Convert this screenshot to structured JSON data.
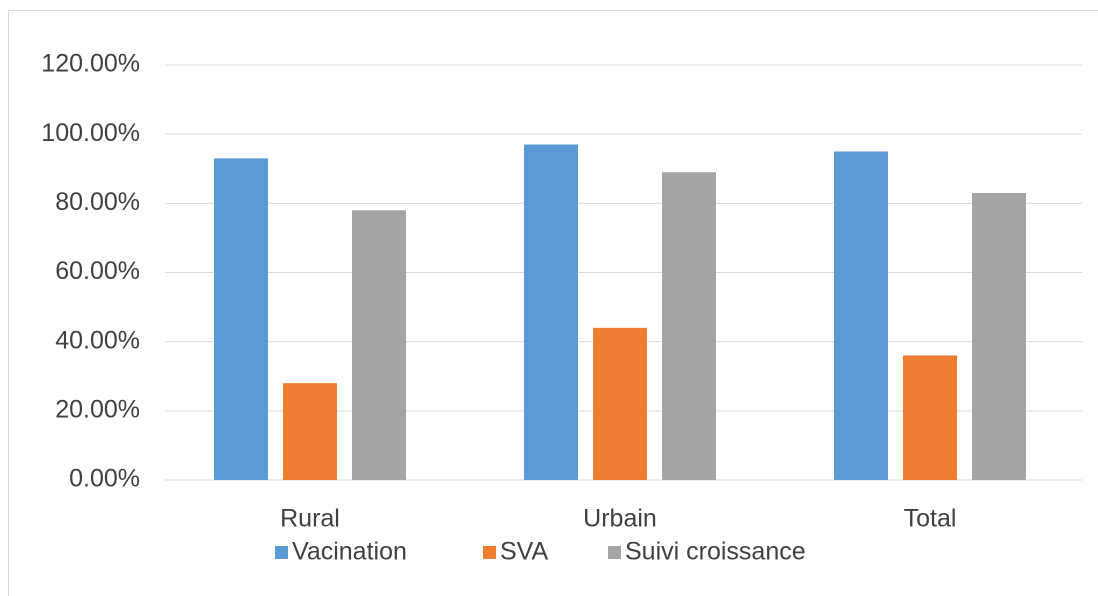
{
  "chart_data": {
    "type": "bar",
    "categories": [
      "Rural",
      "Urbain",
      "Total"
    ],
    "series": [
      {
        "name": "Vacination",
        "color": "#5b9bd5",
        "values": [
          93,
          97,
          95
        ]
      },
      {
        "name": "SVA",
        "color": "#ed7d31",
        "values": [
          28,
          44,
          36
        ]
      },
      {
        "name": "Suivi croissance",
        "color": "#a5a5a5",
        "values": [
          78,
          89,
          83
        ]
      }
    ],
    "ylim": [
      0,
      120
    ],
    "yticks": [
      {
        "value": 0,
        "label": "0.00%"
      },
      {
        "value": 20,
        "label": "20.00%"
      },
      {
        "value": 40,
        "label": "40.00%"
      },
      {
        "value": 60,
        "label": "60.00%"
      },
      {
        "value": 80,
        "label": "80.00%"
      },
      {
        "value": 100,
        "label": "100.00%"
      },
      {
        "value": 120,
        "label": "120.00%"
      }
    ],
    "grid": true,
    "legend": "bottom"
  }
}
